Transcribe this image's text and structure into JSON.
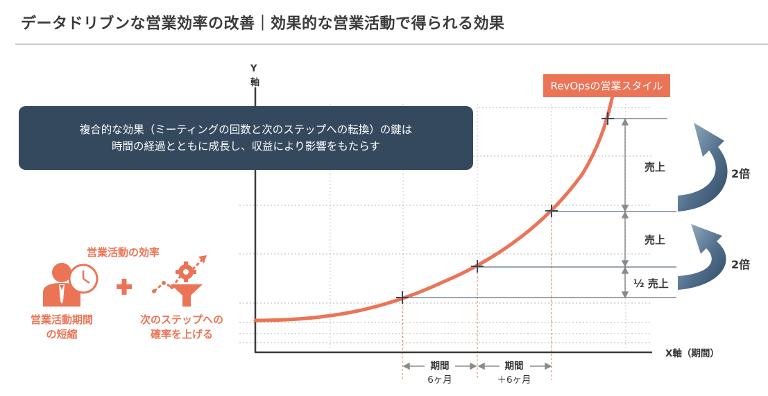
{
  "title": "データドリブンな営業効率の改善｜効果的な営業活動で得られる効果",
  "callout": {
    "line1": "複合的な効果（ミーティングの回数と次のステップへの転換）の鍵は",
    "line2": "時間の経過とともに成長し、収益により影響をもたらす"
  },
  "curve_tag": "RevOpsの営業スタイル",
  "axes": {
    "y_label_top": "Y",
    "y_label_bottom": "軸",
    "x_label": "X軸（期間）"
  },
  "increments": {
    "sales_upper": "売上",
    "sales_middle": "売上",
    "sales_half": "½ 売上"
  },
  "multipliers": {
    "upper": "2倍",
    "lower": "2倍"
  },
  "periods": [
    {
      "head": "期間",
      "value": "6ヶ月"
    },
    {
      "head": "期間",
      "value": "＋6ヶ月"
    }
  ],
  "efficiency": {
    "title": "営業活動の効率",
    "item1_line1": "営業活動期間",
    "item1_line2": "の短縮",
    "item2_line1": "次のステップへの",
    "item2_line2": "確率を上げる"
  },
  "colors": {
    "accent": "#ec7456",
    "navy": "#34495e",
    "arrow": "#4a6580"
  },
  "icons": [
    "businessman-clock-icon",
    "plus-icon",
    "funnel-gear-growth-icon"
  ]
}
